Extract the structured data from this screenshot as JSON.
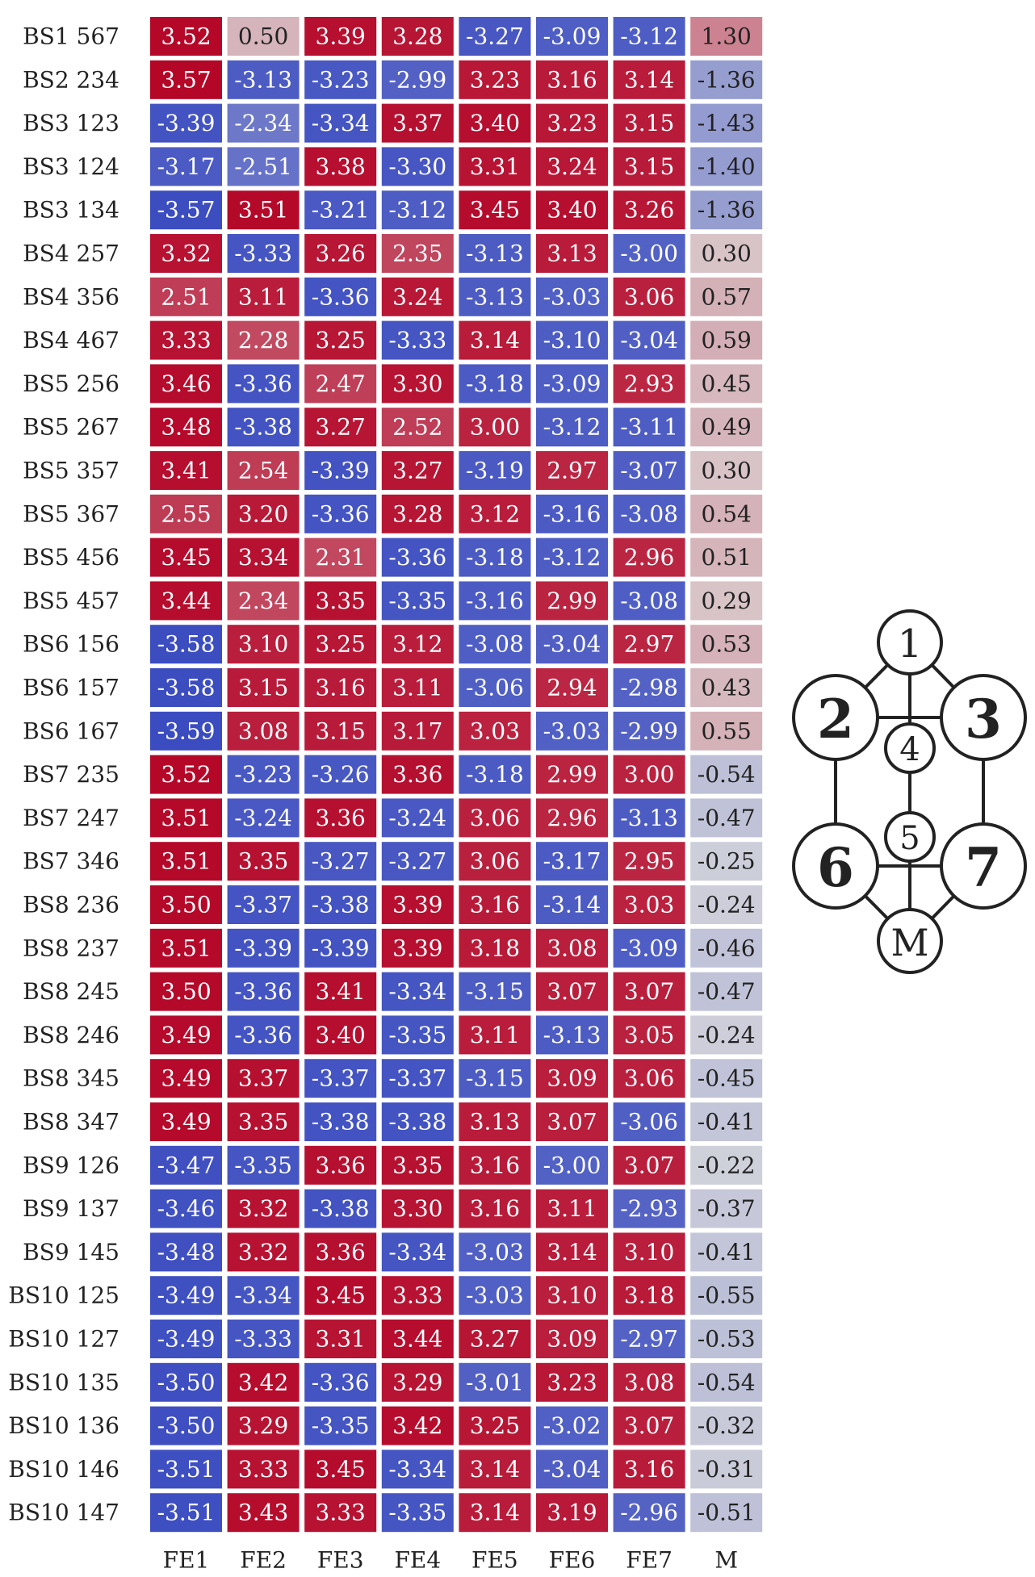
{
  "chart_data": {
    "type": "heatmap",
    "rows": [
      "BS1 567",
      "BS2 234",
      "BS3 123",
      "BS3 124",
      "BS3 134",
      "BS4 257",
      "BS4 356",
      "BS4 467",
      "BS5 256",
      "BS5 267",
      "BS5 357",
      "BS5 367",
      "BS5 456",
      "BS5 457",
      "BS6 156",
      "BS6 157",
      "BS6 167",
      "BS7 235",
      "BS7 247",
      "BS7 346",
      "BS8 236",
      "BS8 237",
      "BS8 245",
      "BS8 246",
      "BS8 345",
      "BS8 347",
      "BS9 126",
      "BS9 137",
      "BS9 145",
      "BS10 125",
      "BS10 127",
      "BS10 135",
      "BS10 136",
      "BS10 146",
      "BS10 147"
    ],
    "columns": [
      "FE1",
      "FE2",
      "FE3",
      "FE4",
      "FE5",
      "FE6",
      "FE7",
      "M"
    ],
    "values": [
      [
        "3.52",
        "0.50",
        "3.39",
        "3.28",
        "-3.27",
        "-3.09",
        "-3.12",
        "1.30"
      ],
      [
        "3.57",
        "-3.13",
        "-3.23",
        "-2.99",
        "3.23",
        "3.16",
        "3.14",
        "-1.36"
      ],
      [
        "-3.39",
        "-2.34",
        "-3.34",
        "3.37",
        "3.40",
        "3.23",
        "3.15",
        "-1.43"
      ],
      [
        "-3.17",
        "-2.51",
        "3.38",
        "-3.30",
        "3.31",
        "3.24",
        "3.15",
        "-1.40"
      ],
      [
        "-3.57",
        "3.51",
        "-3.21",
        "-3.12",
        "3.45",
        "3.40",
        "3.26",
        "-1.36"
      ],
      [
        "3.32",
        "-3.33",
        "3.26",
        "2.35",
        "-3.13",
        "3.13",
        "-3.00",
        "0.30"
      ],
      [
        "2.51",
        "3.11",
        "-3.36",
        "3.24",
        "-3.13",
        "-3.03",
        "3.06",
        "0.57"
      ],
      [
        "3.33",
        "2.28",
        "3.25",
        "-3.33",
        "3.14",
        "-3.10",
        "-3.04",
        "0.59"
      ],
      [
        "3.46",
        "-3.36",
        "2.47",
        "3.30",
        "-3.18",
        "-3.09",
        "2.93",
        "0.45"
      ],
      [
        "3.48",
        "-3.38",
        "3.27",
        "2.52",
        "3.00",
        "-3.12",
        "-3.11",
        "0.49"
      ],
      [
        "3.41",
        "2.54",
        "-3.39",
        "3.27",
        "-3.19",
        "2.97",
        "-3.07",
        "0.30"
      ],
      [
        "2.55",
        "3.20",
        "-3.36",
        "3.28",
        "3.12",
        "-3.16",
        "-3.08",
        "0.54"
      ],
      [
        "3.45",
        "3.34",
        "2.31",
        "-3.36",
        "-3.18",
        "-3.12",
        "2.96",
        "0.51"
      ],
      [
        "3.44",
        "2.34",
        "3.35",
        "-3.35",
        "-3.16",
        "2.99",
        "-3.08",
        "0.29"
      ],
      [
        "-3.58",
        "3.10",
        "3.25",
        "3.12",
        "-3.08",
        "-3.04",
        "2.97",
        "0.53"
      ],
      [
        "-3.58",
        "3.15",
        "3.16",
        "3.11",
        "-3.06",
        "2.94",
        "-2.98",
        "0.43"
      ],
      [
        "-3.59",
        "3.08",
        "3.15",
        "3.17",
        "3.03",
        "-3.03",
        "-2.99",
        "0.55"
      ],
      [
        "3.52",
        "-3.23",
        "-3.26",
        "3.36",
        "-3.18",
        "2.99",
        "3.00",
        "-0.54"
      ],
      [
        "3.51",
        "-3.24",
        "3.36",
        "-3.24",
        "3.06",
        "2.96",
        "-3.13",
        "-0.47"
      ],
      [
        "3.51",
        "3.35",
        "-3.27",
        "-3.27",
        "3.06",
        "-3.17",
        "2.95",
        "-0.25"
      ],
      [
        "3.50",
        "-3.37",
        "-3.38",
        "3.39",
        "3.16",
        "-3.14",
        "3.03",
        "-0.24"
      ],
      [
        "3.51",
        "-3.39",
        "-3.39",
        "3.39",
        "3.18",
        "3.08",
        "-3.09",
        "-0.46"
      ],
      [
        "3.50",
        "-3.36",
        "3.41",
        "-3.34",
        "-3.15",
        "3.07",
        "3.07",
        "-0.47"
      ],
      [
        "3.49",
        "-3.36",
        "3.40",
        "-3.35",
        "3.11",
        "-3.13",
        "3.05",
        "-0.24"
      ],
      [
        "3.49",
        "3.37",
        "-3.37",
        "-3.37",
        "-3.15",
        "3.09",
        "3.06",
        "-0.45"
      ],
      [
        "3.49",
        "3.35",
        "-3.38",
        "-3.38",
        "3.13",
        "3.07",
        "-3.06",
        "-0.41"
      ],
      [
        "-3.47",
        "-3.35",
        "3.36",
        "3.35",
        "3.16",
        "-3.00",
        "3.07",
        "-0.22"
      ],
      [
        "-3.46",
        "3.32",
        "-3.38",
        "3.30",
        "3.16",
        "3.11",
        "-2.93",
        "-0.37"
      ],
      [
        "-3.48",
        "3.32",
        "3.36",
        "-3.34",
        "-3.03",
        "3.14",
        "3.10",
        "-0.41"
      ],
      [
        "-3.49",
        "-3.34",
        "3.45",
        "3.33",
        "-3.03",
        "3.10",
        "3.18",
        "-0.55"
      ],
      [
        "-3.49",
        "-3.33",
        "3.31",
        "3.44",
        "3.27",
        "3.09",
        "-2.97",
        "-0.53"
      ],
      [
        "-3.50",
        "3.42",
        "-3.36",
        "3.29",
        "-3.01",
        "3.23",
        "3.08",
        "-0.54"
      ],
      [
        "-3.50",
        "3.29",
        "-3.35",
        "3.42",
        "3.25",
        "-3.02",
        "3.07",
        "-0.32"
      ],
      [
        "-3.51",
        "3.33",
        "3.45",
        "-3.34",
        "3.14",
        "-3.04",
        "3.16",
        "-0.31"
      ],
      [
        "-3.51",
        "3.43",
        "3.33",
        "-3.35",
        "3.14",
        "3.19",
        "-2.96",
        "-0.51"
      ]
    ],
    "colormap": {
      "name": "coolwarm",
      "negative": "#3b4cc0",
      "neutral": "#dddddd",
      "positive": "#b40426"
    },
    "color_range": [
      -3.6,
      3.6
    ],
    "title": "",
    "xlabel": "",
    "ylabel": ""
  },
  "diagram": {
    "nodes": [
      {
        "id": "1",
        "label": "1"
      },
      {
        "id": "2",
        "label": "2"
      },
      {
        "id": "3",
        "label": "3"
      },
      {
        "id": "4",
        "label": "4"
      },
      {
        "id": "5",
        "label": "5"
      },
      {
        "id": "6",
        "label": "6"
      },
      {
        "id": "7",
        "label": "7"
      },
      {
        "id": "M",
        "label": "M"
      }
    ],
    "edges": [
      [
        "1",
        "2"
      ],
      [
        "1",
        "3"
      ],
      [
        "1",
        "4"
      ],
      [
        "2",
        "3"
      ],
      [
        "2",
        "6"
      ],
      [
        "3",
        "7"
      ],
      [
        "4",
        "5"
      ],
      [
        "6",
        "7"
      ],
      [
        "6",
        "M"
      ],
      [
        "7",
        "M"
      ],
      [
        "5",
        "M"
      ]
    ]
  }
}
